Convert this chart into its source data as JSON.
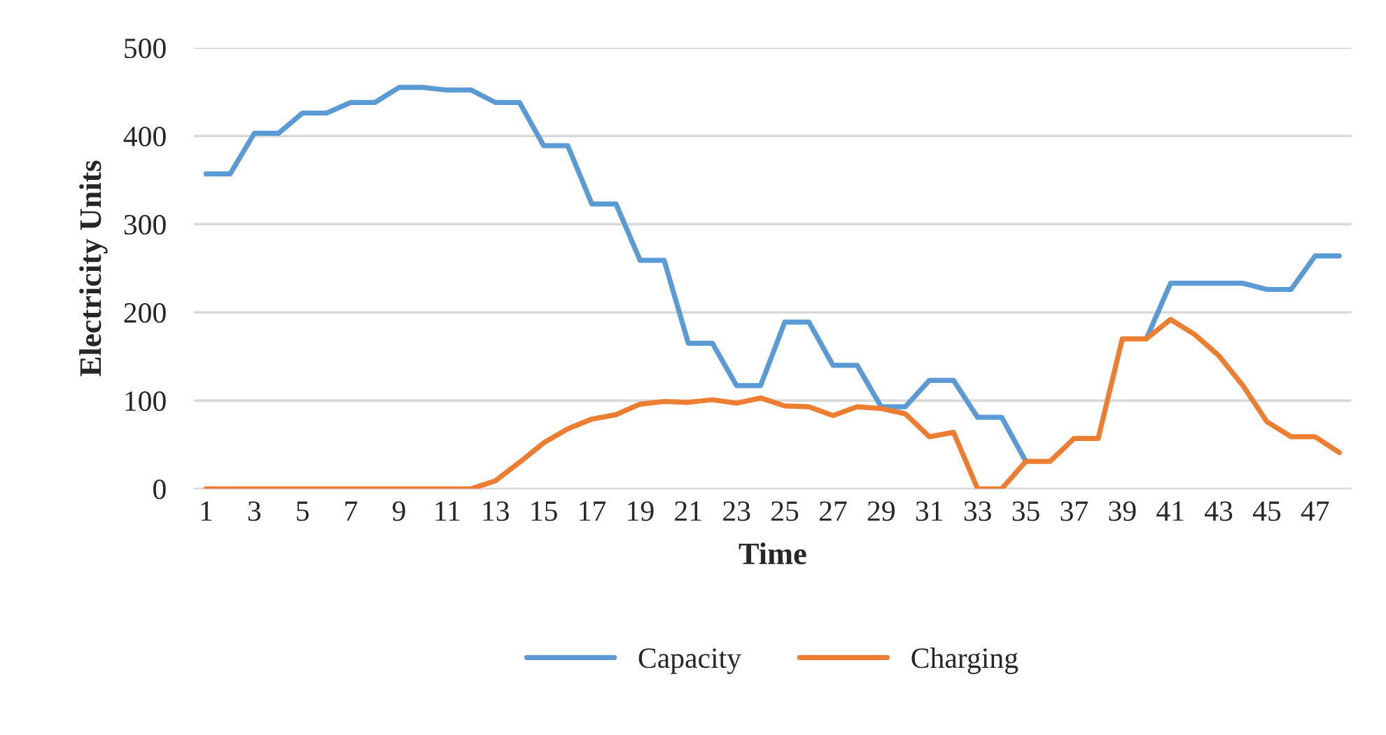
{
  "chart_data": {
    "type": "line",
    "xlabel": "Time",
    "ylabel": "Electricity Units",
    "categories": [
      "1",
      null,
      "3",
      null,
      "5",
      null,
      "7",
      null,
      "9",
      null,
      "11",
      null,
      "13",
      null,
      "15",
      null,
      "17",
      null,
      "19",
      null,
      "21",
      null,
      "23",
      null,
      "25",
      null,
      "27",
      null,
      "29",
      null,
      "31",
      null,
      "33",
      null,
      "35",
      null,
      "37",
      null,
      "39",
      null,
      "41",
      null,
      "43",
      null,
      "45",
      null,
      "47",
      null
    ],
    "series": [
      {
        "name": "Capacity",
        "color": "#5b9bd5",
        "values": [
          357,
          357,
          403,
          403,
          426,
          426,
          438,
          438,
          455,
          455,
          452,
          452,
          438,
          438,
          389,
          389,
          323,
          323,
          259,
          259,
          165,
          165,
          117,
          117,
          189,
          189,
          140,
          140,
          93,
          93,
          123,
          123,
          81,
          81,
          31,
          null,
          null,
          null,
          null,
          170,
          233,
          233,
          233,
          233,
          226,
          226,
          264,
          264
        ]
      },
      {
        "name": "Charging",
        "color": "#ed7d31",
        "values": [
          0,
          0,
          0,
          0,
          0,
          0,
          0,
          0,
          0,
          0,
          0,
          0,
          9,
          30,
          52,
          68,
          79,
          84,
          96,
          99,
          98,
          101,
          97,
          103,
          94,
          93,
          83,
          93,
          91,
          85,
          59,
          64,
          0,
          0,
          31,
          31,
          57,
          57,
          170,
          170,
          192,
          175,
          151,
          117,
          76,
          59,
          59,
          41
        ]
      }
    ],
    "ylim": [
      0,
      500
    ],
    "yticks": [
      0,
      100,
      200,
      300,
      400,
      500
    ],
    "grid": "y",
    "legend": "bottom",
    "marker": "none",
    "line_style": "solid"
  }
}
